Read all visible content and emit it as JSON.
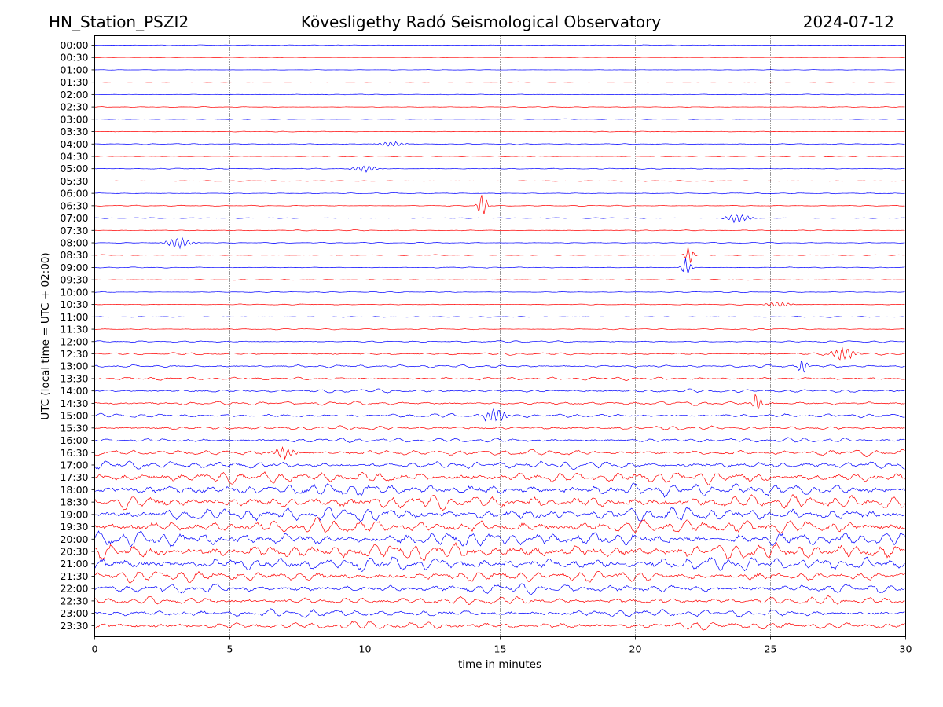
{
  "chart_data": {
    "type": "line",
    "title": "Kövesligethy Radó Seismological Observatory",
    "station": "HN_Station_PSZI2",
    "date": "2024-07-12",
    "xlabel": "time in minutes",
    "ylabel": "UTC (local time = UTC + 02:00)",
    "xlim": [
      0,
      30
    ],
    "xticks": [
      0,
      5,
      10,
      15,
      20,
      25,
      30
    ],
    "xtick_labels": [
      "0",
      "5",
      "10",
      "15",
      "20",
      "25",
      "30"
    ],
    "grid": "vertical dotted lines at 5, 10, 15, 20, 25",
    "trace_colors": [
      "#0000ff",
      "#ff0000"
    ],
    "row_labels": [
      "00:00",
      "00:30",
      "01:00",
      "01:30",
      "02:00",
      "02:30",
      "03:00",
      "03:30",
      "04:00",
      "04:30",
      "05:00",
      "05:30",
      "06:00",
      "06:30",
      "07:00",
      "07:30",
      "08:00",
      "08:30",
      "09:00",
      "09:30",
      "10:00",
      "10:30",
      "11:00",
      "11:30",
      "12:00",
      "12:30",
      "13:00",
      "13:30",
      "14:00",
      "14:30",
      "15:00",
      "15:30",
      "16:00",
      "16:30",
      "17:00",
      "17:30",
      "18:00",
      "18:30",
      "19:00",
      "19:30",
      "20:00",
      "20:30",
      "21:00",
      "21:30",
      "22:00",
      "22:30",
      "23:00",
      "23:30"
    ],
    "row_amplitude": [
      0.3,
      0.2,
      0.2,
      0.2,
      0.3,
      0.3,
      0.3,
      0.3,
      0.4,
      0.4,
      0.4,
      0.4,
      0.4,
      0.4,
      0.4,
      0.4,
      0.4,
      0.4,
      0.4,
      0.4,
      0.4,
      0.4,
      0.4,
      0.5,
      0.7,
      1.0,
      1.2,
      1.3,
      1.4,
      1.5,
      1.6,
      1.6,
      1.8,
      2.4,
      3.0,
      4.6,
      4.9,
      5.5,
      5.6,
      5.6,
      6.0,
      6.2,
      5.6,
      4.5,
      3.6,
      3.2,
      3.1,
      3.2
    ],
    "events": [
      {
        "row": "05:00",
        "minute": 10.0,
        "amplitude": 5
      },
      {
        "row": "04:00",
        "minute": 11.0,
        "amplitude": 4
      },
      {
        "row": "06:30",
        "minute": 14.35,
        "amplitude": 18
      },
      {
        "row": "07:00",
        "minute": 23.8,
        "amplitude": 7
      },
      {
        "row": "08:00",
        "minute": 3.1,
        "amplitude": 9
      },
      {
        "row": "08:30",
        "minute": 22.0,
        "amplitude": 12
      },
      {
        "row": "09:00",
        "minute": 21.9,
        "amplitude": 14
      },
      {
        "row": "10:30",
        "minute": 25.3,
        "amplitude": 4
      },
      {
        "row": "13:00",
        "minute": 26.2,
        "amplitude": 12
      },
      {
        "row": "12:30",
        "minute": 27.7,
        "amplitude": 10
      },
      {
        "row": "14:30",
        "minute": 24.5,
        "amplitude": 14
      },
      {
        "row": "15:00",
        "minute": 14.8,
        "amplitude": 10
      },
      {
        "row": "16:30",
        "minute": 7.0,
        "amplitude": 8
      }
    ]
  }
}
